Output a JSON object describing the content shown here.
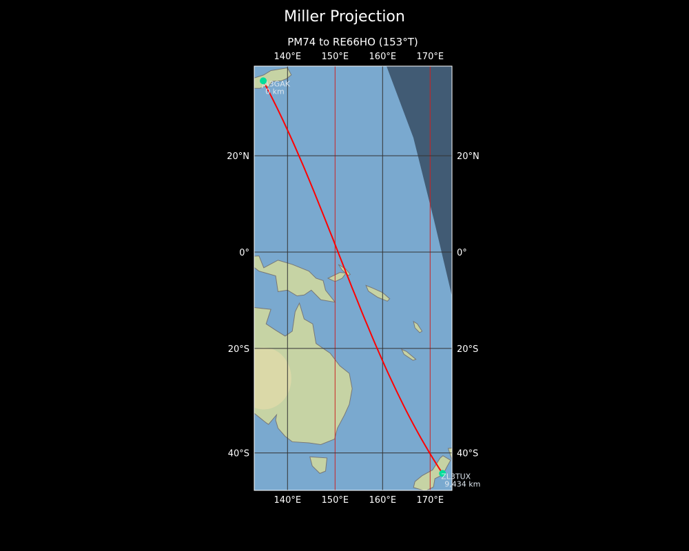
{
  "title": "Miller Projection",
  "subtitle": "PM74 to RE66HO (153°T)",
  "map": {
    "projection": "miller",
    "extent": {
      "lon": [
        133,
        174.6
      ],
      "lat": [
        -47,
        36
      ]
    },
    "lon_ticks": [
      {
        "value": 140,
        "label": "140°E"
      },
      {
        "value": 150,
        "label": "150°E"
      },
      {
        "value": 160,
        "label": "160°E"
      },
      {
        "value": 170,
        "label": "170°E"
      }
    ],
    "lat_ticks": [
      {
        "value": 20,
        "label": "20°N"
      },
      {
        "value": 0,
        "label": "0°"
      },
      {
        "value": -20,
        "label": "20°S"
      },
      {
        "value": -40,
        "label": "40°S"
      }
    ],
    "highlight_meridians": [
      150,
      170
    ],
    "colors": {
      "ocean": "#7aa9cf",
      "land": "#c6d3a4",
      "interior": "#e4dcaa",
      "path": "#ff0000",
      "marker": "#00dd99",
      "night": "#2f4155",
      "grid": "#333333",
      "meridian": "#cc2222"
    }
  },
  "stations": [
    {
      "name": "JA3GAK",
      "distance": "0 km",
      "lon": 134.9,
      "lat": 34.6
    },
    {
      "name": "ZL3TUX",
      "distance": "9,434 km",
      "lon": 172.6,
      "lat": -43.6
    }
  ]
}
